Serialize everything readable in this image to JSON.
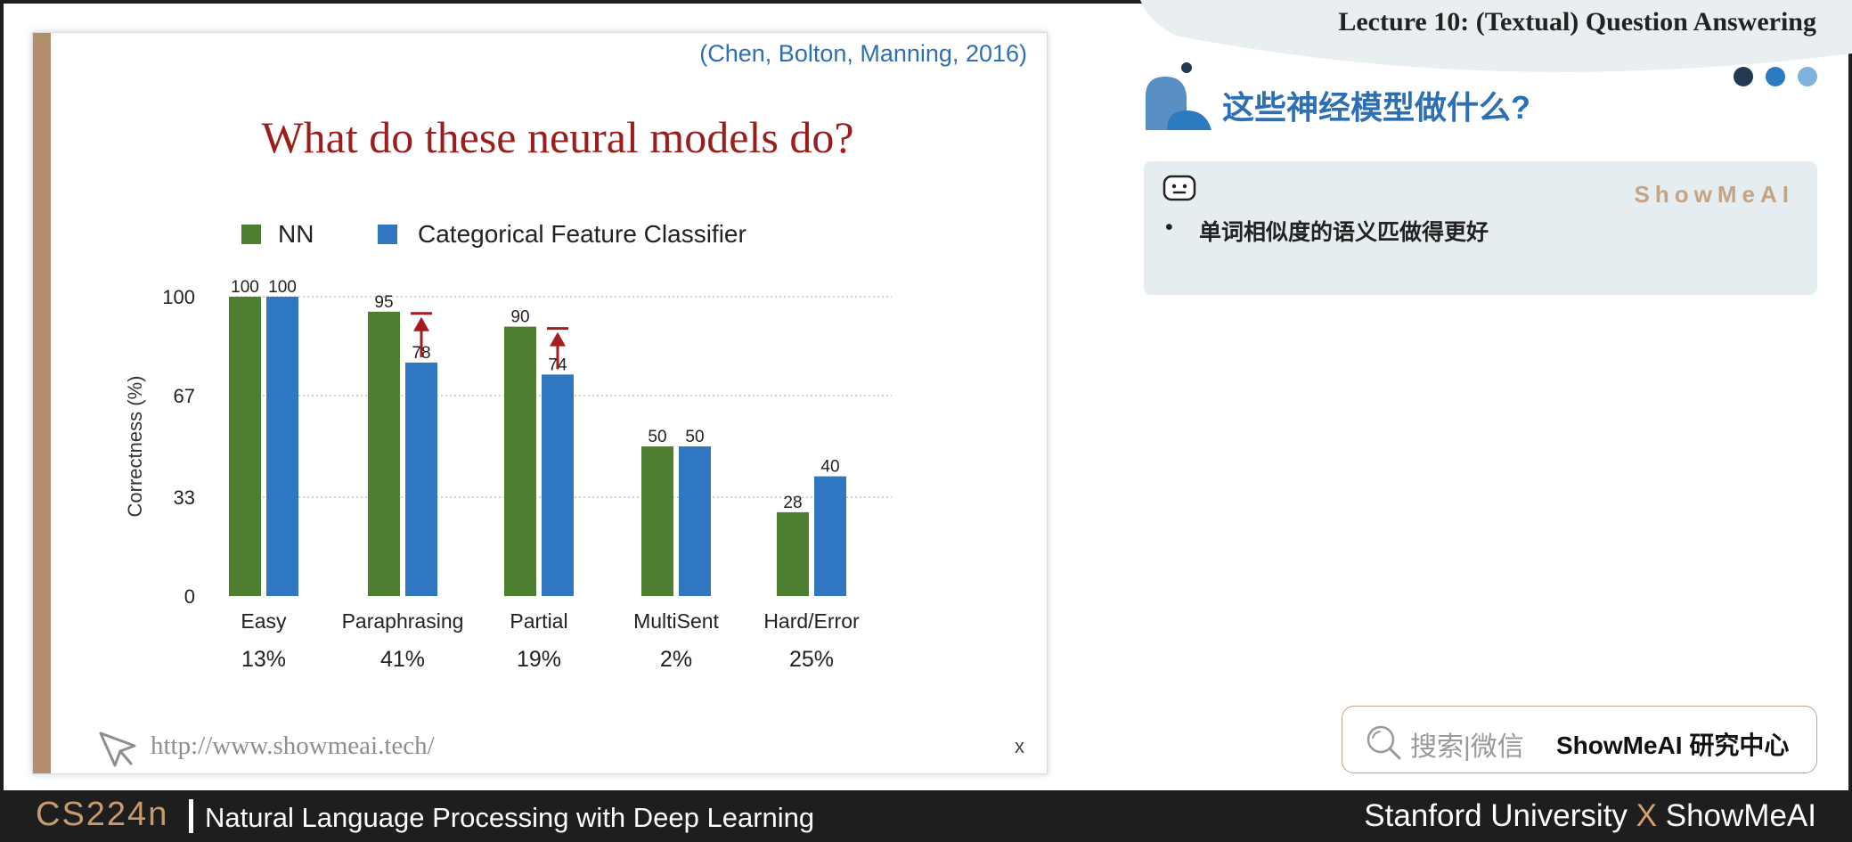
{
  "header": {
    "lecture_title": "Lecture 10: (Textual) Question Answering",
    "dot_colors": [
      "#1f3a52",
      "#2c7bc0",
      "#7fb3dd"
    ]
  },
  "section": {
    "title": "这些神经模型做什么?"
  },
  "note": {
    "brand": "ShowMeAI",
    "bullet_marker": "•",
    "bullet_text": "单词相似度的语义匹做得更好"
  },
  "search": {
    "label": "搜索|微信",
    "brand": "ShowMeAI 研究中心"
  },
  "footer": {
    "course_code": "CS224n",
    "course_name": "Natural Language Processing with Deep Learning",
    "institution": "Stanford University",
    "separator": "X",
    "brand": "ShowMeAI"
  },
  "slide": {
    "citation": "(Chen, Bolton, Manning, 2016)",
    "title": "What do these neural models do?",
    "url": "http://www.showmeai.tech/",
    "corner_mark": "x"
  },
  "colors": {
    "nn": "#4c7f2f",
    "classifier": "#2f78c1",
    "arrow": "#a61b1b",
    "title": "#9a1e1c"
  },
  "chart_data": {
    "type": "bar",
    "title": "",
    "xlabel": "",
    "ylabel": "Correctness (%)",
    "ylim": [
      0,
      100
    ],
    "yticks": [
      0,
      33,
      67,
      100
    ],
    "grid": true,
    "legend_position": "top",
    "categories": [
      "Easy",
      "Paraphrasing",
      "Partial",
      "MultiSent",
      "Hard/Error"
    ],
    "category_shares": [
      "13%",
      "41%",
      "19%",
      "2%",
      "25%"
    ],
    "series": [
      {
        "name": "NN",
        "values": [
          100,
          95,
          90,
          50,
          28
        ]
      },
      {
        "name": "Categorical Feature Classifier",
        "values": [
          100,
          78,
          74,
          50,
          40
        ]
      }
    ],
    "improvement_arrows": [
      "Paraphrasing",
      "Partial"
    ]
  }
}
